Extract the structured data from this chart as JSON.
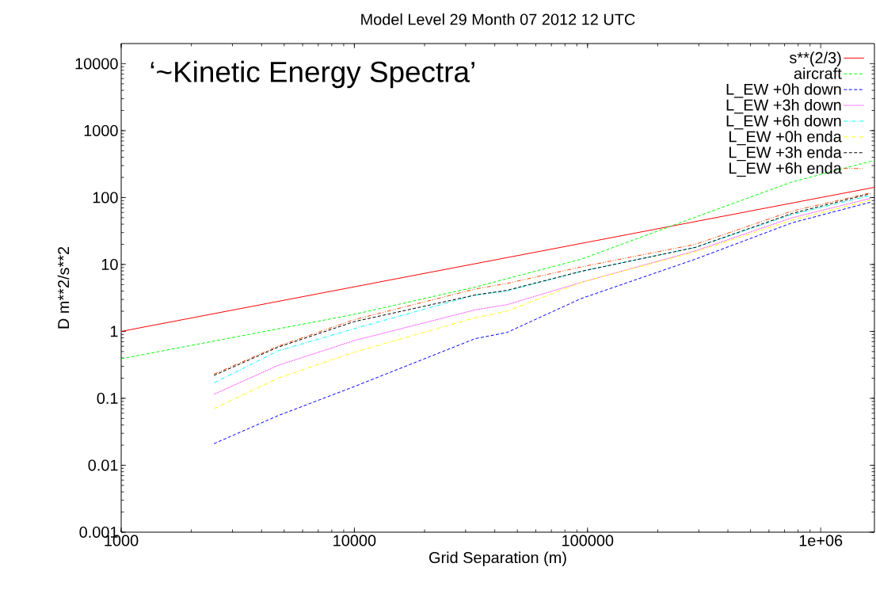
{
  "chart_data": {
    "type": "line",
    "title": "Model Level 29 Month 07 2012 12 UTC",
    "xlabel": "Grid Separation (m)",
    "ylabel": "D m**2/s**2",
    "annotations": [
      "‘~Kinetic Energy Spectra’"
    ],
    "log": "xy",
    "grid": false,
    "legend": "top right",
    "marker": "none",
    "xlim": [
      1000,
      1700000
    ],
    "ylim": [
      0.001,
      20000
    ],
    "xticks": [
      1000,
      10000,
      100000,
      {
        "value": 1000000,
        "label": "1e+06"
      }
    ],
    "yticks": [
      0.001,
      0.01,
      0.1,
      1,
      10,
      100,
      1000,
      10000
    ],
    "series": [
      {
        "name": "s**(2/3)",
        "color": "#ff0000",
        "line_style": "solid",
        "x": [
          1000,
          10000,
          100000,
          1000000,
          1700000
        ],
        "values": [
          1,
          4.64,
          21.5,
          100,
          142
        ]
      },
      {
        "name": "aircraft",
        "color": "#00ff00",
        "line_style": "dashed",
        "x": [
          1000,
          10000,
          33000,
          94000,
          240000,
          750000,
          1700000
        ],
        "values": [
          0.39,
          1.8,
          4.6,
          12,
          40,
          170,
          360
        ]
      },
      {
        "name": "L_EW +0h down",
        "color": "#0000ff",
        "line_style": "dashed",
        "x": [
          2500,
          4700,
          10000,
          33000,
          45000,
          94000,
          290000,
          755000,
          1630000
        ],
        "values": [
          0.021,
          0.055,
          0.15,
          0.78,
          0.96,
          3.1,
          12,
          42,
          85
        ]
      },
      {
        "name": "L_EW +3h down",
        "color": "#ff00ff",
        "line_style": "dotted",
        "x": [
          2500,
          4700,
          10000,
          33000,
          45000,
          94000,
          290000,
          755000,
          1630000
        ],
        "values": [
          0.115,
          0.31,
          0.73,
          2.1,
          2.5,
          5.4,
          16,
          50,
          97
        ]
      },
      {
        "name": "L_EW +6h down",
        "color": "#00ffff",
        "line_style": "dashdot",
        "x": [
          2500,
          4700,
          10000,
          33000,
          45000,
          94000,
          290000,
          755000,
          1630000
        ],
        "values": [
          0.17,
          0.51,
          1.1,
          3.5,
          4.0,
          7.9,
          18,
          56,
          107
        ]
      },
      {
        "name": "L_EW +0h enda",
        "color": "#ffff00",
        "line_style": "dashdot",
        "x": [
          2500,
          4700,
          10000,
          33000,
          45000,
          94000,
          290000,
          755000,
          1630000
        ],
        "values": [
          0.07,
          0.2,
          0.49,
          1.6,
          2.0,
          5.4,
          15.5,
          46,
          91
        ]
      },
      {
        "name": "L_EW +3h enda",
        "color": "#000000",
        "line_style": "dashed",
        "x": [
          2500,
          4700,
          10000,
          33000,
          45000,
          94000,
          290000,
          755000,
          1630000
        ],
        "values": [
          0.22,
          0.58,
          1.4,
          3.5,
          4.1,
          7.9,
          18,
          58,
          114
        ]
      },
      {
        "name": "L_EW +6h enda",
        "color": "#ff4500",
        "line_style": "dashdotdot",
        "x": [
          2500,
          4700,
          10000,
          33000,
          45000,
          94000,
          290000,
          755000,
          1630000
        ],
        "values": [
          0.23,
          0.6,
          1.5,
          4.3,
          5.2,
          9.2,
          20,
          63,
          117
        ]
      }
    ]
  }
}
